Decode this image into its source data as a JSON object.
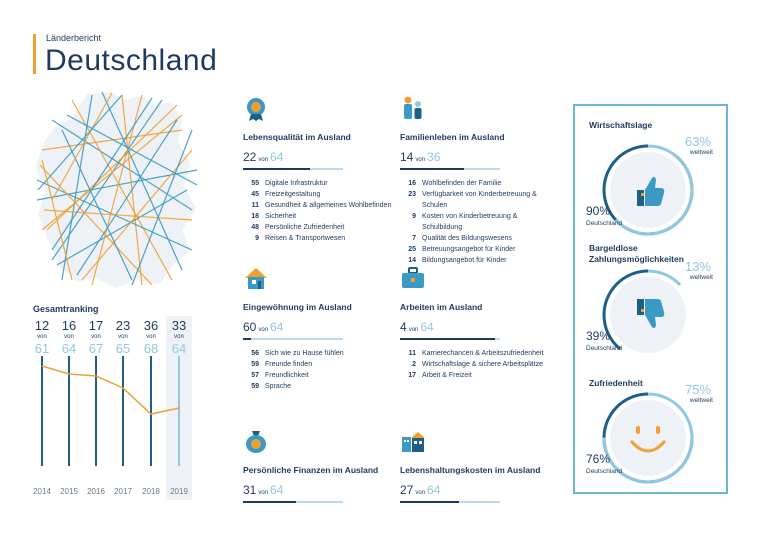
{
  "header": {
    "supertitle": "Länderbericht",
    "title": "Deutschland"
  },
  "colors": {
    "navy": "#1e3a5f",
    "light_blue": "#8fc9e0",
    "blue": "#3a9ac4",
    "orange": "#f0a030"
  },
  "ranking": {
    "title": "Gesamtranking",
    "von": "von",
    "columns": [
      {
        "year": "2014",
        "rank": "12",
        "total": "61"
      },
      {
        "year": "2015",
        "rank": "16",
        "total": "64"
      },
      {
        "year": "2016",
        "rank": "17",
        "total": "67"
      },
      {
        "year": "2017",
        "rank": "23",
        "total": "65"
      },
      {
        "year": "2018",
        "rank": "36",
        "total": "68"
      },
      {
        "year": "2019",
        "rank": "33",
        "total": "64"
      }
    ]
  },
  "categories": [
    {
      "title": "Lebensqualität im Ausland",
      "rank": "22",
      "von": "von",
      "total": "64",
      "icon": "medal-icon",
      "items": [
        {
          "n": "55",
          "label": "Digitale Infrastruktur"
        },
        {
          "n": "45",
          "label": "Freizeitgestaltung"
        },
        {
          "n": "11",
          "label": "Gesundheit & allgemeines Wohlbefinden"
        },
        {
          "n": "18",
          "label": "Sicherheit"
        },
        {
          "n": "48",
          "label": "Persönliche Zufriedenheit"
        },
        {
          "n": "9",
          "label": "Reisen & Transportwesen"
        }
      ]
    },
    {
      "title": "Familienleben im Ausland",
      "rank": "14",
      "von": "von",
      "total": "36",
      "icon": "family-icon",
      "items": [
        {
          "n": "16",
          "label": "Wohlbefinden der Familie"
        },
        {
          "n": "23",
          "label": "Verfügbarkeit von Kinderbetreuung & Schulen"
        },
        {
          "n": "9",
          "label": "Kosten von Kinderbetreuung & Schulbildung"
        },
        {
          "n": "7",
          "label": "Qualität des Bildungswesens"
        },
        {
          "n": "25",
          "label": "Betreuungsangebot für Kinder"
        },
        {
          "n": "14",
          "label": "Bildungsangebot für Kinder"
        }
      ]
    },
    {
      "title": "Eingewöhnung im Ausland",
      "rank": "60",
      "von": "von",
      "total": "64",
      "icon": "house-icon",
      "items": [
        {
          "n": "56",
          "label": "Sich wie zu Hause fühlen"
        },
        {
          "n": "59",
          "label": "Freunde finden"
        },
        {
          "n": "57",
          "label": "Freundlichkeit"
        },
        {
          "n": "59",
          "label": "Sprache"
        }
      ]
    },
    {
      "title": "Arbeiten im Ausland",
      "rank": "4",
      "von": "von",
      "total": "64",
      "icon": "briefcase-icon",
      "items": [
        {
          "n": "11",
          "label": "Karrierechancen & Arbeitszufriedenheit"
        },
        {
          "n": "2",
          "label": "Wirtschaftslage & sichere Arbeitsplätze"
        },
        {
          "n": "17",
          "label": "Arbeit & Freizeit"
        }
      ]
    },
    {
      "title": "Persönliche Finanzen im Ausland",
      "rank": "31",
      "von": "von",
      "total": "64",
      "icon": "money-bag-icon",
      "items": []
    },
    {
      "title": "Lebenshaltungskosten im Ausland",
      "rank": "27",
      "von": "von",
      "total": "64",
      "icon": "city-icon",
      "items": []
    }
  ],
  "economy": [
    {
      "title": "Wirtschaftslage",
      "world": "63%",
      "world_value": 63,
      "world_label": "weltweit",
      "de": "90%",
      "de_value": 90,
      "de_label": "Deutschland",
      "icon": "thumbs-up-icon"
    },
    {
      "title": "Bargeldlose Zahlungsmöglichkeiten",
      "world": "13%",
      "world_value": 13,
      "world_label": "weltweit",
      "de": "39%",
      "de_value": 39,
      "de_label": "Deutschland",
      "icon": "thumbs-down-icon"
    },
    {
      "title": "Zufriedenheit",
      "world": "75%",
      "world_value": 75,
      "world_label": "weltweit",
      "de": "76%",
      "de_value": 76,
      "de_label": "Deutschland",
      "icon": "smiley-icon"
    }
  ],
  "chart_data": {
    "type": "line",
    "x": [
      "2014",
      "2015",
      "2016",
      "2017",
      "2018",
      "2019"
    ],
    "series": [
      {
        "name": "",
        "values": [
          12,
          16,
          17,
          23,
          36,
          33
        ]
      }
    ],
    "totals": [
      61,
      64,
      67,
      65,
      68,
      64
    ],
    "title": "Gesamtranking"
  }
}
